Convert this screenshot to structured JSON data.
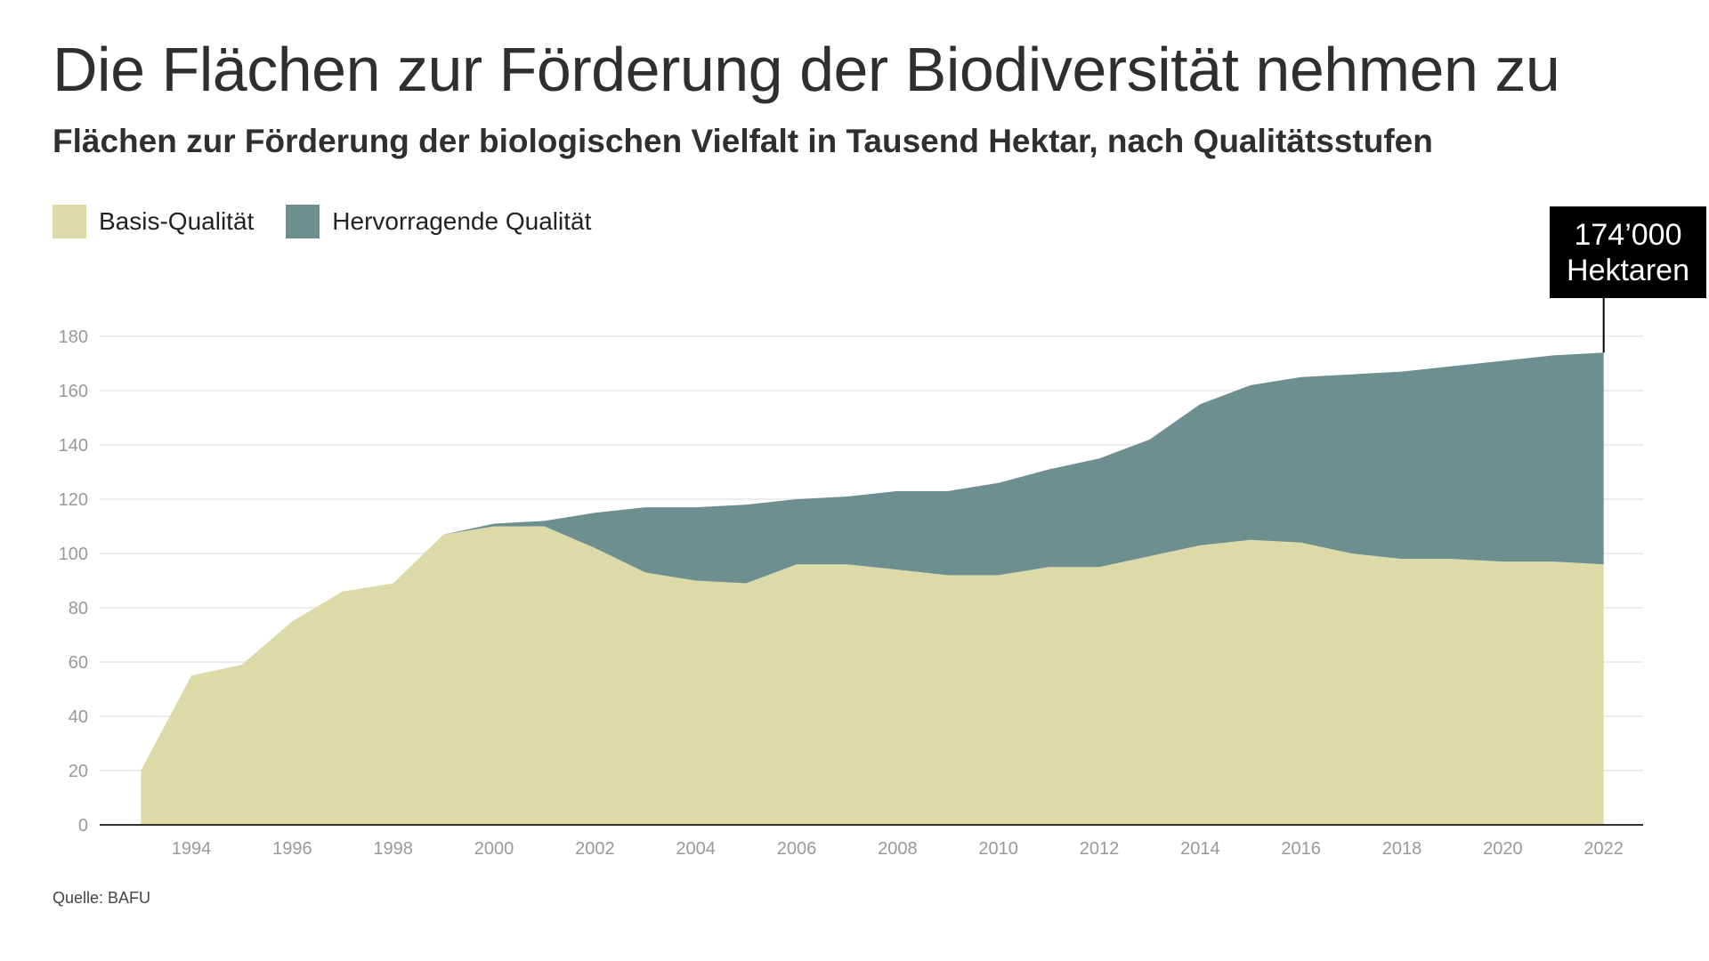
{
  "title": "Die Flächen zur Förderung der Biodiversität nehmen zu",
  "subtitle": "Flächen zur Förderung der biologischen Vielfalt in Tausend Hektar, nach Qualitätsstufen",
  "source": "Quelle: BAFU",
  "callout": {
    "line1": "174’000",
    "line2": "Hektaren"
  },
  "colors": {
    "basis": "#dcdba8",
    "hervorragend": "#6e8f90",
    "grid": "#e6e6e6",
    "axis": "#333333",
    "tick_label": "#999999"
  },
  "chart_data": {
    "type": "area",
    "stacked": true,
    "x": [
      1993,
      1994,
      1995,
      1996,
      1997,
      1998,
      1999,
      2000,
      2001,
      2002,
      2003,
      2004,
      2005,
      2006,
      2007,
      2008,
      2009,
      2010,
      2011,
      2012,
      2013,
      2014,
      2015,
      2016,
      2017,
      2018,
      2019,
      2020,
      2021,
      2022
    ],
    "series": [
      {
        "name": "Basis-Qualität",
        "color": "#dcdba8",
        "values": [
          20,
          55,
          59,
          75,
          86,
          89,
          107,
          110,
          110,
          102,
          93,
          90,
          89,
          96,
          96,
          94,
          92,
          92,
          95,
          95,
          99,
          103,
          105,
          104,
          100,
          98,
          98,
          97,
          97,
          96
        ]
      },
      {
        "name": "Hervorragende Qualität",
        "color": "#6e8f90",
        "values": [
          0,
          0,
          0,
          0,
          0,
          0,
          0,
          1,
          2,
          13,
          24,
          27,
          29,
          24,
          25,
          29,
          31,
          34,
          36,
          40,
          43,
          52,
          57,
          61,
          66,
          69,
          71,
          74,
          76,
          78
        ]
      }
    ],
    "ylim": [
      0,
      180
    ],
    "yticks": [
      0,
      20,
      40,
      60,
      80,
      100,
      120,
      140,
      160,
      180
    ],
    "xticks": [
      1994,
      1996,
      1998,
      2000,
      2002,
      2004,
      2006,
      2008,
      2010,
      2012,
      2014,
      2016,
      2018,
      2020,
      2022
    ],
    "grid": true,
    "legend_position": "top-left"
  }
}
